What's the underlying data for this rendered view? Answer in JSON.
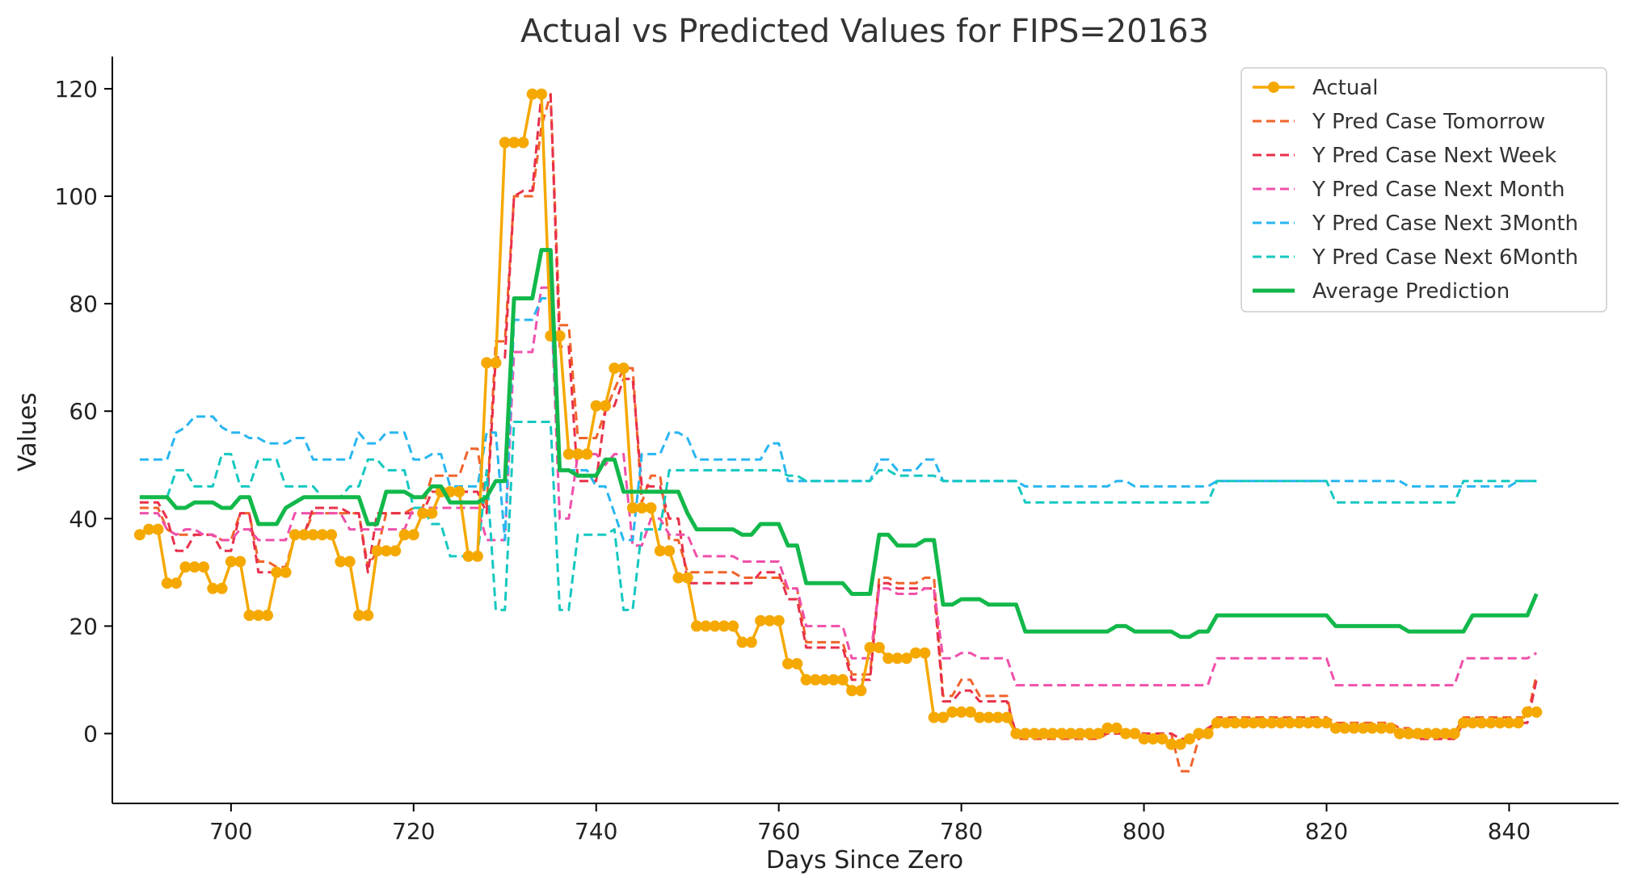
{
  "chart_data": {
    "type": "line",
    "title": "Actual vs Predicted Values for FIPS=20163",
    "xlabel": "Days Since Zero",
    "ylabel": "Values",
    "xlim": [
      687,
      852
    ],
    "ylim": [
      -13,
      126
    ],
    "xticks": [
      700,
      720,
      740,
      760,
      780,
      800,
      820,
      840
    ],
    "yticks": [
      0,
      20,
      40,
      60,
      80,
      100,
      120
    ],
    "grid": false,
    "legend_position": "top-right",
    "x": [
      690,
      691,
      692,
      693,
      694,
      695,
      696,
      697,
      698,
      699,
      700,
      701,
      702,
      703,
      704,
      705,
      706,
      707,
      708,
      709,
      710,
      711,
      712,
      713,
      714,
      715,
      716,
      717,
      718,
      719,
      720,
      721,
      722,
      723,
      724,
      725,
      726,
      727,
      728,
      729,
      730,
      731,
      732,
      733,
      734,
      735,
      736,
      737,
      738,
      739,
      740,
      741,
      742,
      743,
      744,
      745,
      746,
      747,
      748,
      749,
      750,
      751,
      752,
      753,
      754,
      755,
      756,
      757,
      758,
      759,
      760,
      761,
      762,
      763,
      764,
      765,
      766,
      767,
      768,
      769,
      770,
      771,
      772,
      773,
      774,
      775,
      776,
      777,
      778,
      779,
      780,
      781,
      782,
      783,
      784,
      785,
      786,
      787,
      788,
      789,
      790,
      791,
      792,
      793,
      794,
      795,
      796,
      797,
      798,
      799,
      800,
      801,
      802,
      803,
      804,
      805,
      806,
      807,
      808,
      809,
      810,
      811,
      812,
      813,
      814,
      815,
      816,
      817,
      818,
      819,
      820,
      821,
      822,
      823,
      824,
      825,
      826,
      827,
      828,
      829,
      830,
      831,
      832,
      833,
      834,
      835,
      836,
      837,
      838,
      839,
      840,
      841,
      842,
      843
    ],
    "series": [
      {
        "name": "Actual",
        "color": "#f5a800",
        "style": "solid-marker",
        "values": [
          37,
          38,
          38,
          28,
          28,
          31,
          31,
          31,
          27,
          27,
          32,
          32,
          22,
          22,
          22,
          30,
          30,
          37,
          37,
          37,
          37,
          37,
          32,
          32,
          22,
          22,
          34,
          34,
          34,
          37,
          37,
          41,
          41,
          45,
          45,
          45,
          33,
          33,
          69,
          69,
          110,
          110,
          110,
          119,
          119,
          74,
          74,
          52,
          52,
          52,
          61,
          61,
          68,
          68,
          42,
          42,
          42,
          34,
          34,
          29,
          29,
          20,
          20,
          20,
          20,
          20,
          17,
          17,
          21,
          21,
          21,
          13,
          13,
          10,
          10,
          10,
          10,
          10,
          8,
          8,
          16,
          16,
          14,
          14,
          14,
          15,
          15,
          3,
          3,
          4,
          4,
          4,
          3,
          3,
          3,
          3,
          0,
          0,
          0,
          0,
          0,
          0,
          0,
          0,
          0,
          0,
          1,
          1,
          0,
          0,
          -1,
          -1,
          -1,
          -2,
          -2,
          -1,
          0,
          0,
          2,
          2,
          2,
          2,
          2,
          2,
          2,
          2,
          2,
          2,
          2,
          2,
          2,
          1,
          1,
          1,
          1,
          1,
          1,
          1,
          0,
          0,
          0,
          0,
          0,
          0,
          0,
          2,
          2,
          2,
          2,
          2,
          2,
          2,
          4,
          4
        ]
      },
      {
        "name": "Y Pred Case Tomorrow",
        "color": "#f0632a",
        "style": "dashed",
        "values": [
          42,
          42,
          42,
          38,
          37,
          37,
          37,
          37,
          37,
          36,
          36,
          41,
          41,
          32,
          32,
          31,
          31,
          37,
          37,
          41,
          41,
          41,
          41,
          41,
          41,
          31,
          34,
          41,
          41,
          41,
          42,
          42,
          48,
          48,
          48,
          48,
          53,
          53,
          42,
          73,
          73,
          100,
          100,
          100,
          113,
          119,
          76,
          76,
          55,
          55,
          55,
          60,
          64,
          68,
          68,
          43,
          48,
          48,
          36,
          36,
          30,
          30,
          30,
          30,
          30,
          30,
          29,
          29,
          29,
          29,
          29,
          27,
          27,
          17,
          17,
          17,
          17,
          17,
          11,
          11,
          11,
          29,
          29,
          28,
          28,
          28,
          29,
          29,
          7,
          7,
          10,
          10,
          7,
          7,
          7,
          7,
          -1,
          -1,
          -1,
          -1,
          -1,
          -1,
          -1,
          -1,
          -1,
          -1,
          0,
          0,
          0,
          0,
          0,
          0,
          0,
          0,
          -7,
          -7,
          -1,
          0,
          3,
          3,
          3,
          3,
          3,
          3,
          3,
          3,
          3,
          3,
          3,
          3,
          3,
          2,
          2,
          2,
          2,
          2,
          2,
          2,
          1,
          1,
          0,
          0,
          0,
          0,
          0,
          3,
          3,
          3,
          3,
          3,
          3,
          3,
          3,
          11
        ]
      },
      {
        "name": "Y Pred Case Next Week",
        "color": "#e8304a",
        "style": "dashed",
        "values": [
          43,
          43,
          43,
          40,
          34,
          34,
          37,
          37,
          37,
          34,
          34,
          41,
          41,
          30,
          30,
          30,
          30,
          37,
          37,
          42,
          42,
          42,
          42,
          41,
          41,
          30,
          41,
          41,
          41,
          41,
          41,
          41,
          45,
          45,
          45,
          45,
          45,
          45,
          41,
          70,
          70,
          100,
          101,
          101,
          119,
          119,
          72,
          72,
          47,
          47,
          47,
          60,
          61,
          66,
          66,
          46,
          46,
          46,
          40,
          40,
          28,
          28,
          28,
          28,
          28,
          28,
          28,
          28,
          30,
          30,
          30,
          25,
          25,
          16,
          16,
          16,
          16,
          16,
          10,
          10,
          10,
          28,
          28,
          27,
          27,
          27,
          27,
          27,
          6,
          6,
          8,
          8,
          6,
          6,
          6,
          6,
          0,
          0,
          0,
          0,
          0,
          0,
          0,
          0,
          0,
          0,
          0,
          0,
          0,
          0,
          0,
          0,
          0,
          0,
          -1,
          -1,
          0,
          1,
          2,
          2,
          2,
          2,
          2,
          2,
          2,
          2,
          2,
          2,
          2,
          2,
          2,
          1,
          1,
          1,
          1,
          1,
          1,
          1,
          0,
          0,
          -1,
          -1,
          -1,
          -1,
          -1,
          2,
          2,
          2,
          2,
          2,
          2,
          2,
          2,
          10
        ]
      },
      {
        "name": "Y Pred Case Next Month",
        "color": "#f050aa",
        "style": "dashed",
        "values": [
          41,
          41,
          41,
          38,
          37,
          38,
          38,
          37,
          37,
          36,
          36,
          38,
          38,
          36,
          36,
          36,
          36,
          41,
          41,
          41,
          41,
          41,
          41,
          38,
          38,
          38,
          38,
          38,
          38,
          38,
          42,
          42,
          42,
          42,
          42,
          42,
          42,
          42,
          36,
          36,
          36,
          71,
          71,
          71,
          83,
          83,
          40,
          40,
          52,
          52,
          52,
          50,
          52,
          52,
          35,
          35,
          40,
          40,
          37,
          37,
          37,
          33,
          33,
          33,
          33,
          33,
          32,
          32,
          32,
          32,
          32,
          27,
          27,
          20,
          20,
          20,
          20,
          20,
          14,
          14,
          14,
          27,
          27,
          26,
          26,
          26,
          27,
          27,
          14,
          14,
          15,
          15,
          14,
          14,
          14,
          14,
          9,
          9,
          9,
          9,
          9,
          9,
          9,
          9,
          9,
          9,
          9,
          9,
          9,
          9,
          9,
          9,
          9,
          9,
          9,
          9,
          9,
          9,
          14,
          14,
          14,
          14,
          14,
          14,
          14,
          14,
          14,
          14,
          14,
          14,
          14,
          9,
          9,
          9,
          9,
          9,
          9,
          9,
          9,
          9,
          9,
          9,
          9,
          9,
          9,
          14,
          14,
          14,
          14,
          14,
          14,
          14,
          14,
          15
        ]
      },
      {
        "name": "Y Pred Case Next 3Month",
        "color": "#29b6f0",
        "style": "dashed",
        "values": [
          51,
          51,
          51,
          51,
          56,
          57,
          59,
          59,
          59,
          57,
          56,
          56,
          55,
          55,
          54,
          54,
          54,
          55,
          55,
          51,
          51,
          51,
          51,
          51,
          56,
          54,
          54,
          56,
          56,
          56,
          51,
          51,
          52,
          52,
          46,
          46,
          46,
          46,
          56,
          56,
          36,
          77,
          77,
          77,
          81,
          81,
          49,
          49,
          49,
          49,
          46,
          46,
          41,
          36,
          36,
          52,
          52,
          52,
          56,
          56,
          55,
          51,
          51,
          51,
          51,
          51,
          51,
          51,
          51,
          54,
          54,
          47,
          47,
          47,
          47,
          47,
          47,
          47,
          47,
          47,
          47,
          51,
          51,
          49,
          49,
          49,
          51,
          51,
          47,
          47,
          47,
          47,
          47,
          47,
          47,
          47,
          47,
          46,
          46,
          46,
          46,
          46,
          46,
          46,
          46,
          46,
          46,
          47,
          47,
          46,
          46,
          46,
          46,
          46,
          46,
          46,
          46,
          46,
          47,
          47,
          47,
          47,
          47,
          47,
          47,
          47,
          47,
          47,
          47,
          47,
          47,
          47,
          47,
          47,
          47,
          47,
          47,
          47,
          47,
          46,
          46,
          46,
          46,
          46,
          46,
          46,
          46,
          46,
          46,
          46,
          46,
          47,
          47,
          47
        ]
      },
      {
        "name": "Y Pred Case Next 6Month",
        "color": "#14c8c0",
        "style": "dashed",
        "values": [
          44,
          44,
          44,
          44,
          49,
          49,
          46,
          46,
          46,
          52,
          52,
          46,
          46,
          51,
          51,
          51,
          46,
          46,
          46,
          46,
          44,
          44,
          44,
          46,
          46,
          51,
          51,
          49,
          49,
          49,
          42,
          42,
          39,
          39,
          33,
          33,
          33,
          33,
          49,
          23,
          23,
          58,
          58,
          58,
          58,
          58,
          23,
          23,
          37,
          37,
          37,
          37,
          38,
          23,
          23,
          38,
          38,
          38,
          49,
          49,
          49,
          49,
          49,
          49,
          49,
          49,
          49,
          49,
          49,
          49,
          49,
          48,
          48,
          47,
          47,
          47,
          47,
          47,
          47,
          47,
          47,
          49,
          49,
          48,
          48,
          48,
          48,
          48,
          47,
          47,
          47,
          47,
          47,
          47,
          47,
          47,
          47,
          43,
          43,
          43,
          43,
          43,
          43,
          43,
          43,
          43,
          43,
          43,
          43,
          43,
          43,
          43,
          43,
          43,
          43,
          43,
          43,
          43,
          47,
          47,
          47,
          47,
          47,
          47,
          47,
          47,
          47,
          47,
          47,
          47,
          47,
          43,
          43,
          43,
          43,
          43,
          43,
          43,
          43,
          43,
          43,
          43,
          43,
          43,
          43,
          47,
          47,
          47,
          47,
          47,
          47,
          47,
          47,
          47
        ]
      },
      {
        "name": "Average Prediction",
        "color": "#12b84a",
        "style": "solid",
        "values": [
          44,
          44,
          44,
          44,
          42,
          42,
          43,
          43,
          43,
          42,
          42,
          44,
          44,
          39,
          39,
          39,
          42,
          43,
          44,
          44,
          44,
          44,
          44,
          44,
          44,
          39,
          39,
          45,
          45,
          45,
          44,
          44,
          46,
          46,
          43,
          43,
          43,
          43,
          44,
          47,
          47,
          81,
          81,
          81,
          90,
          90,
          49,
          49,
          48,
          48,
          48,
          51,
          51,
          45,
          45,
          45,
          45,
          45,
          45,
          45,
          41,
          38,
          38,
          38,
          38,
          38,
          37,
          37,
          39,
          39,
          39,
          35,
          35,
          28,
          28,
          28,
          28,
          28,
          26,
          26,
          26,
          37,
          37,
          35,
          35,
          35,
          36,
          36,
          24,
          24,
          25,
          25,
          25,
          24,
          24,
          24,
          24,
          19,
          19,
          19,
          19,
          19,
          19,
          19,
          19,
          19,
          19,
          20,
          20,
          19,
          19,
          19,
          19,
          19,
          18,
          18,
          19,
          19,
          22,
          22,
          22,
          22,
          22,
          22,
          22,
          22,
          22,
          22,
          22,
          22,
          22,
          20,
          20,
          20,
          20,
          20,
          20,
          20,
          20,
          19,
          19,
          19,
          19,
          19,
          19,
          19,
          22,
          22,
          22,
          22,
          22,
          22,
          22,
          26
        ]
      }
    ]
  }
}
